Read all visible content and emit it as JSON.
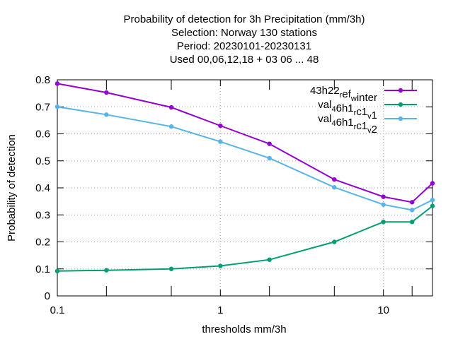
{
  "chart_data": {
    "type": "line",
    "title_lines": [
      "Probability of detection  for 3h Precipitation (mm/3h)",
      "Selection: Norway    130 stations",
      "Period: 20230101-20230131",
      "Used  00,06,12,18  + 03 06 ... 48"
    ],
    "xlabel": "thresholds mm/3h",
    "ylabel": "Probability of detection",
    "x_scale": "log",
    "xlim": [
      0.1,
      20
    ],
    "ylim": [
      0,
      0.8
    ],
    "x_ticks": [
      {
        "value": 0.1,
        "label": "0.1"
      },
      {
        "value": 1,
        "label": "1"
      },
      {
        "value": 10,
        "label": "10"
      }
    ],
    "x_minor_ticks": [
      0.2,
      0.5,
      2,
      5,
      15,
      20
    ],
    "y_ticks": [
      {
        "value": 0,
        "label": "0"
      },
      {
        "value": 0.1,
        "label": "0.1"
      },
      {
        "value": 0.2,
        "label": "0.2"
      },
      {
        "value": 0.3,
        "label": "0.3"
      },
      {
        "value": 0.4,
        "label": "0.4"
      },
      {
        "value": 0.5,
        "label": "0.5"
      },
      {
        "value": 0.6,
        "label": "0.6"
      },
      {
        "value": 0.7,
        "label": "0.7"
      },
      {
        "value": 0.8,
        "label": "0.8"
      }
    ],
    "grid": true,
    "legend_position": "top-right",
    "x": [
      0.1,
      0.2,
      0.5,
      1,
      2,
      5,
      10,
      15,
      20
    ],
    "series": [
      {
        "name": "43h22_ref_winter",
        "name_parts": [
          {
            "t": "43h22",
            "s": "n"
          },
          {
            "t": "r",
            "s": "sub"
          },
          {
            "t": "ef",
            "s": "n"
          },
          {
            "t": "w",
            "s": "sub"
          },
          {
            "t": "inter",
            "s": "n"
          }
        ],
        "color": "#9400d3",
        "values": [
          0.786,
          0.753,
          0.698,
          0.63,
          0.563,
          0.431,
          0.367,
          0.347,
          0.417
        ]
      },
      {
        "name": "val_46h1_rc1_v1",
        "name_parts": [
          {
            "t": "val",
            "s": "n"
          },
          {
            "t": "4",
            "s": "sub"
          },
          {
            "t": "6h1",
            "s": "n"
          },
          {
            "t": "r",
            "s": "sub"
          },
          {
            "t": "c1",
            "s": "n"
          },
          {
            "t": "v",
            "s": "sub"
          },
          {
            "t": "1",
            "s": "n"
          }
        ],
        "color": "#009e73",
        "values": [
          0.092,
          0.095,
          0.1,
          0.111,
          0.134,
          0.2,
          0.274,
          0.274,
          0.333
        ]
      },
      {
        "name": "val_46h1_rc1_v2",
        "name_parts": [
          {
            "t": "val",
            "s": "n"
          },
          {
            "t": "4",
            "s": "sub"
          },
          {
            "t": "6h1",
            "s": "n"
          },
          {
            "t": "r",
            "s": "sub"
          },
          {
            "t": "c1",
            "s": "n"
          },
          {
            "t": "v",
            "s": "sub"
          },
          {
            "t": "2",
            "s": "n"
          }
        ],
        "color": "#56b4e9",
        "values": [
          0.7,
          0.671,
          0.627,
          0.571,
          0.51,
          0.402,
          0.338,
          0.318,
          0.355
        ]
      }
    ]
  }
}
